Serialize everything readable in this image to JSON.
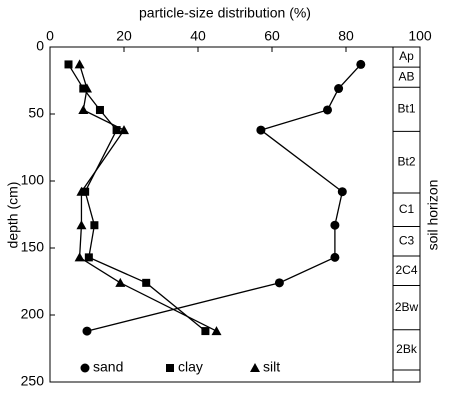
{
  "chart_data": {
    "type": "line",
    "x_label": "particle-size distribution (%)",
    "y_label": "depth (cm)",
    "y2_label": "soil horizon",
    "depth": [
      13,
      31,
      47,
      62,
      108,
      133,
      157,
      176,
      212
    ],
    "series": [
      {
        "name": "sand",
        "color": "#000000",
        "marker": "circle",
        "values": [
          84,
          78,
          75,
          57,
          79,
          77,
          77,
          62,
          10
        ]
      },
      {
        "name": "clay",
        "color": "#000000",
        "marker": "square",
        "values": [
          5,
          9,
          13.5,
          18,
          9.5,
          12,
          10.5,
          26,
          42
        ]
      },
      {
        "name": "silt",
        "color": "#000000",
        "marker": "triangle",
        "values": [
          8,
          10,
          9,
          20,
          8.5,
          8.5,
          8,
          19,
          45
        ]
      }
    ],
    "xlim": [
      0,
      100
    ],
    "xticks": [
      0,
      20,
      40,
      60,
      80,
      100
    ],
    "ylim": [
      0,
      250
    ],
    "yticks": [
      0,
      50,
      100,
      150,
      200,
      250
    ],
    "y_reversed": true,
    "horizons": [
      {
        "label": "Ap",
        "depth": [
          0,
          15
        ]
      },
      {
        "label": "AB",
        "depth": [
          15,
          30
        ]
      },
      {
        "label": "Bt1",
        "depth": [
          30,
          63
        ]
      },
      {
        "label": "Bt2",
        "depth": [
          63,
          109
        ]
      },
      {
        "label": "C1",
        "depth": [
          109,
          134
        ]
      },
      {
        "label": "C3",
        "depth": [
          134,
          156
        ]
      },
      {
        "label": "2C4",
        "depth": [
          156,
          178
        ]
      },
      {
        "label": "2Bw",
        "depth": [
          178,
          211
        ]
      },
      {
        "label": "2Bk",
        "depth": [
          211,
          241
        ]
      }
    ]
  }
}
